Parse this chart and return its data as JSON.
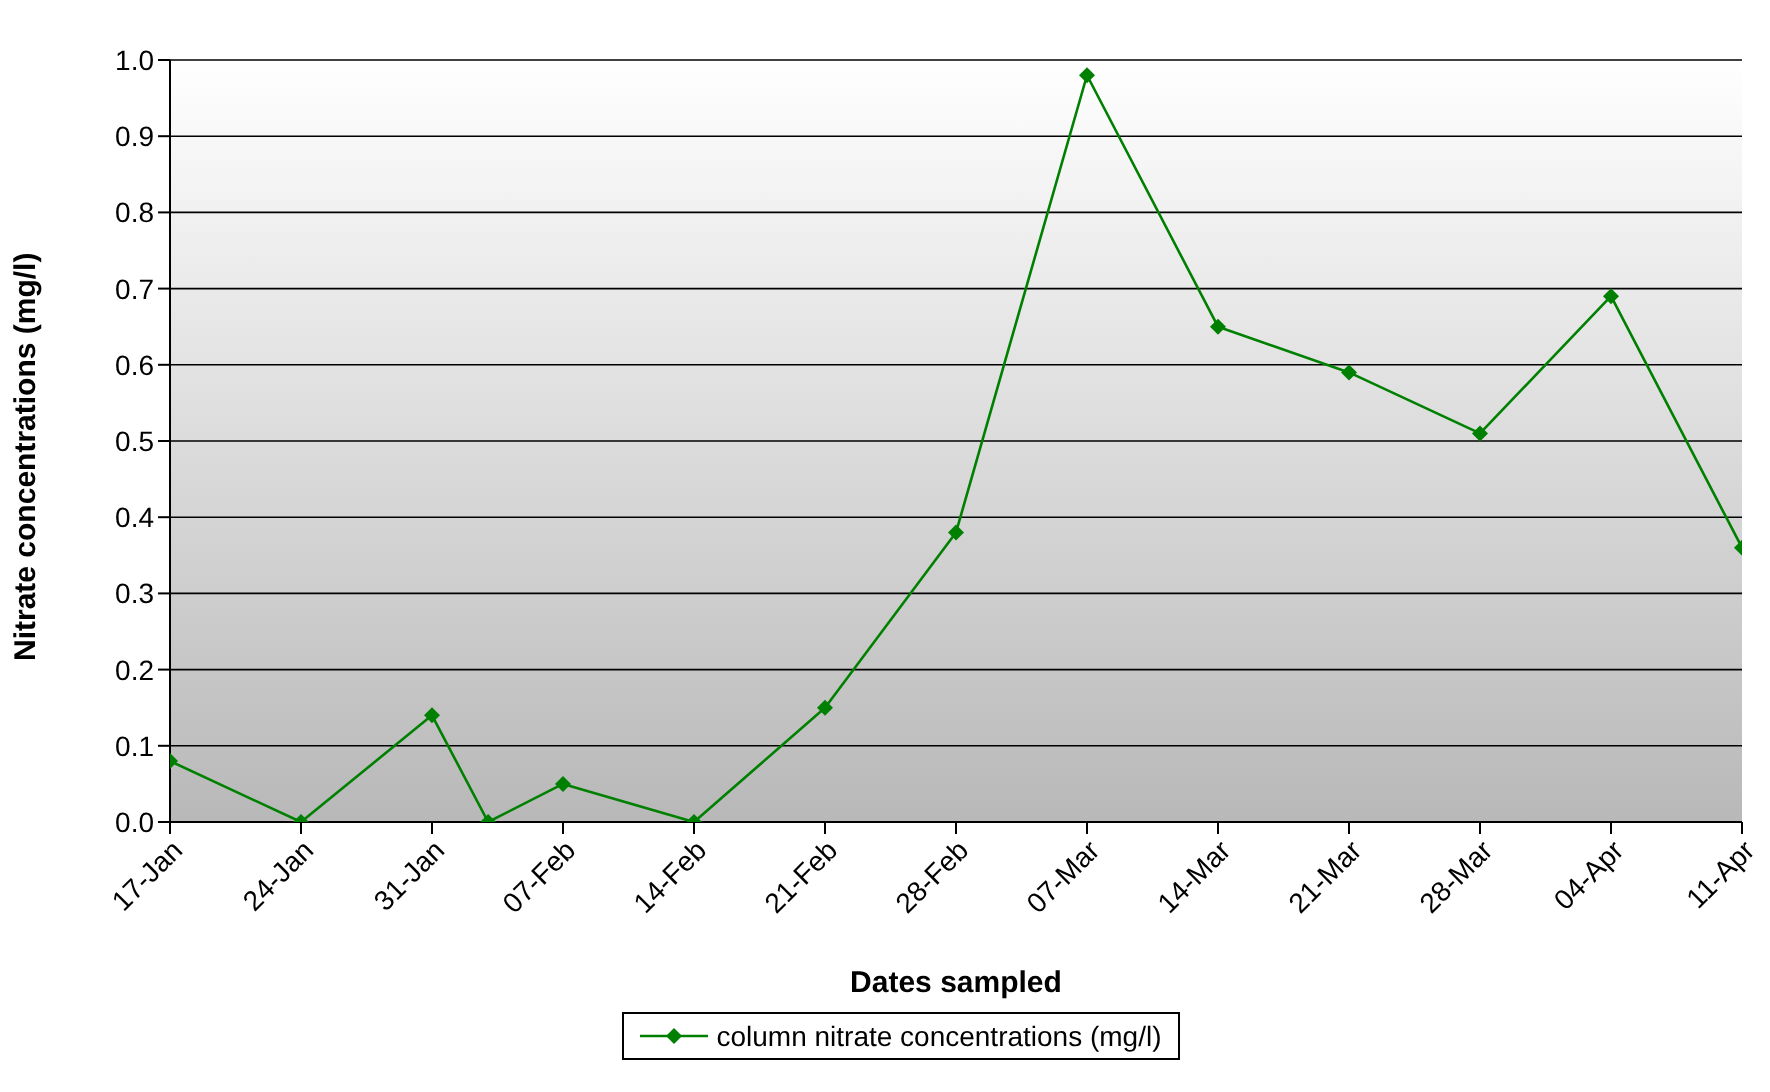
{
  "chart_data": {
    "type": "line",
    "xlabel": "Dates sampled",
    "ylabel": "Nitrate concentrations (mg/l)",
    "series": [
      {
        "name": "column nitrate concentrations (mg/l)",
        "color": "#008000",
        "x": [
          "--01-17",
          "--01-24",
          "--01-31",
          "--02-03",
          "--02-07",
          "--02-14",
          "--02-21",
          "--02-28",
          "--03-07",
          "--03-14",
          "--03-21",
          "--03-28",
          "--04-04",
          "--04-11"
        ],
        "values": [
          0.08,
          0.0,
          0.14,
          0.0,
          0.05,
          0.0,
          0.15,
          0.38,
          0.98,
          0.65,
          0.59,
          0.51,
          0.69,
          0.36
        ]
      }
    ],
    "xlim": [
      "--01-17",
      "--04-11"
    ],
    "xticks": [
      {
        "value": "--01-17",
        "label": "17-Jan"
      },
      {
        "value": "--01-24",
        "label": "24-Jan"
      },
      {
        "value": "--01-31",
        "label": "31-Jan"
      },
      {
        "value": "--02-07",
        "label": "07-Feb"
      },
      {
        "value": "--02-14",
        "label": "14-Feb"
      },
      {
        "value": "--02-21",
        "label": "21-Feb"
      },
      {
        "value": "--02-28",
        "label": "28-Feb"
      },
      {
        "value": "--03-07",
        "label": "07-Mar"
      },
      {
        "value": "--03-14",
        "label": "14-Mar"
      },
      {
        "value": "--03-21",
        "label": "21-Mar"
      },
      {
        "value": "--03-28",
        "label": "28-Mar"
      },
      {
        "value": "--04-04",
        "label": "04-Apr"
      },
      {
        "value": "--04-11",
        "label": "11-Apr"
      }
    ],
    "ylim": [
      0,
      1
    ],
    "yticks": [
      {
        "value": 0,
        "label": "0.0"
      },
      {
        "value": 0.1,
        "label": "0.1"
      },
      {
        "value": 0.2,
        "label": "0.2"
      },
      {
        "value": 0.3,
        "label": "0.3"
      },
      {
        "value": 0.4,
        "label": "0.4"
      },
      {
        "value": 0.5,
        "label": "0.5"
      },
      {
        "value": 0.6,
        "label": "0.6"
      },
      {
        "value": 0.7,
        "label": "0.7"
      },
      {
        "value": 0.8,
        "label": "0.8"
      },
      {
        "value": 0.9,
        "label": "0.9"
      },
      {
        "value": 1,
        "label": "1.0"
      }
    ],
    "grid": "y",
    "legend": "bottom",
    "marker": "diamond",
    "line_style": "solid"
  }
}
